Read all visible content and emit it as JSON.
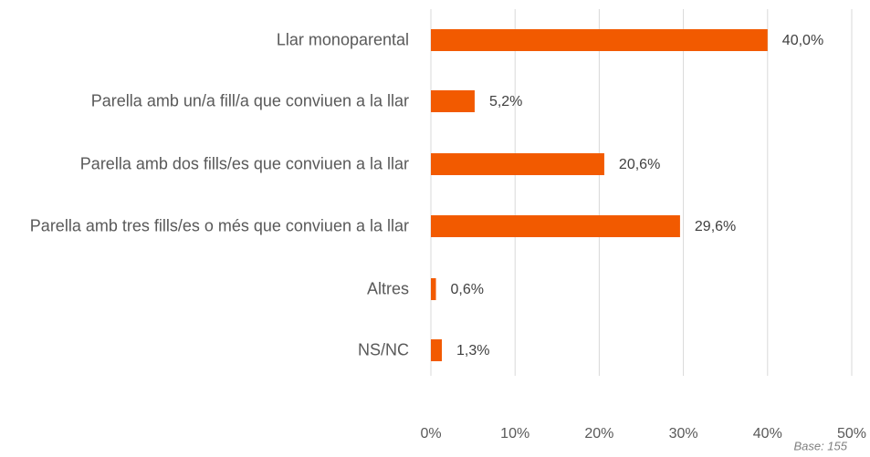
{
  "chart_data": {
    "type": "bar",
    "orientation": "horizontal",
    "categories": [
      "Llar monoparental",
      "Parella amb un/a fill/a que conviuen a la llar",
      "Parella amb dos fills/es que conviuen a la llar",
      "Parella amb tres fills/es o més que conviuen a la llar",
      "Altres",
      "NS/NC"
    ],
    "values": [
      40.0,
      5.2,
      20.6,
      29.6,
      0.6,
      1.3
    ],
    "value_labels": [
      "40,0%",
      "5,2%",
      "20,6%",
      "29,6%",
      "0,6%",
      "1,3%"
    ],
    "color": "#f25a00",
    "xlim": [
      0,
      50
    ],
    "xticks": [
      {
        "value": 0,
        "label": "0%"
      },
      {
        "value": 10,
        "label": "10%"
      },
      {
        "value": 20,
        "label": "20%"
      },
      {
        "value": 30,
        "label": "30%"
      },
      {
        "value": 40,
        "label": "40%"
      },
      {
        "value": 50,
        "label": "50%"
      }
    ],
    "grid": true,
    "note": "Base: 155"
  }
}
